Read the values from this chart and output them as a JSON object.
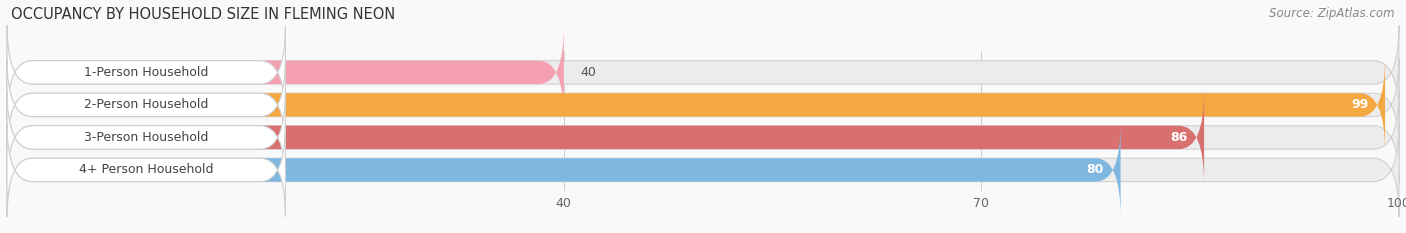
{
  "title": "OCCUPANCY BY HOUSEHOLD SIZE IN FLEMING NEON",
  "source": "Source: ZipAtlas.com",
  "categories": [
    "1-Person Household",
    "2-Person Household",
    "3-Person Household",
    "4+ Person Household"
  ],
  "values": [
    40,
    99,
    86,
    80
  ],
  "bar_colors": [
    "#f4a0b0",
    "#f5a842",
    "#d97070",
    "#7eb8e0"
  ],
  "bar_bg_color": "#ececec",
  "xlim": [
    0,
    100
  ],
  "xticks": [
    40,
    70,
    100
  ],
  "bar_height": 0.72,
  "title_fontsize": 10.5,
  "source_fontsize": 8.5,
  "tick_fontsize": 9,
  "label_fontsize": 9,
  "value_fontsize": 9,
  "background_color": "#f9f9f9",
  "label_bg_color": "#ffffff",
  "grid_color": "#cccccc"
}
